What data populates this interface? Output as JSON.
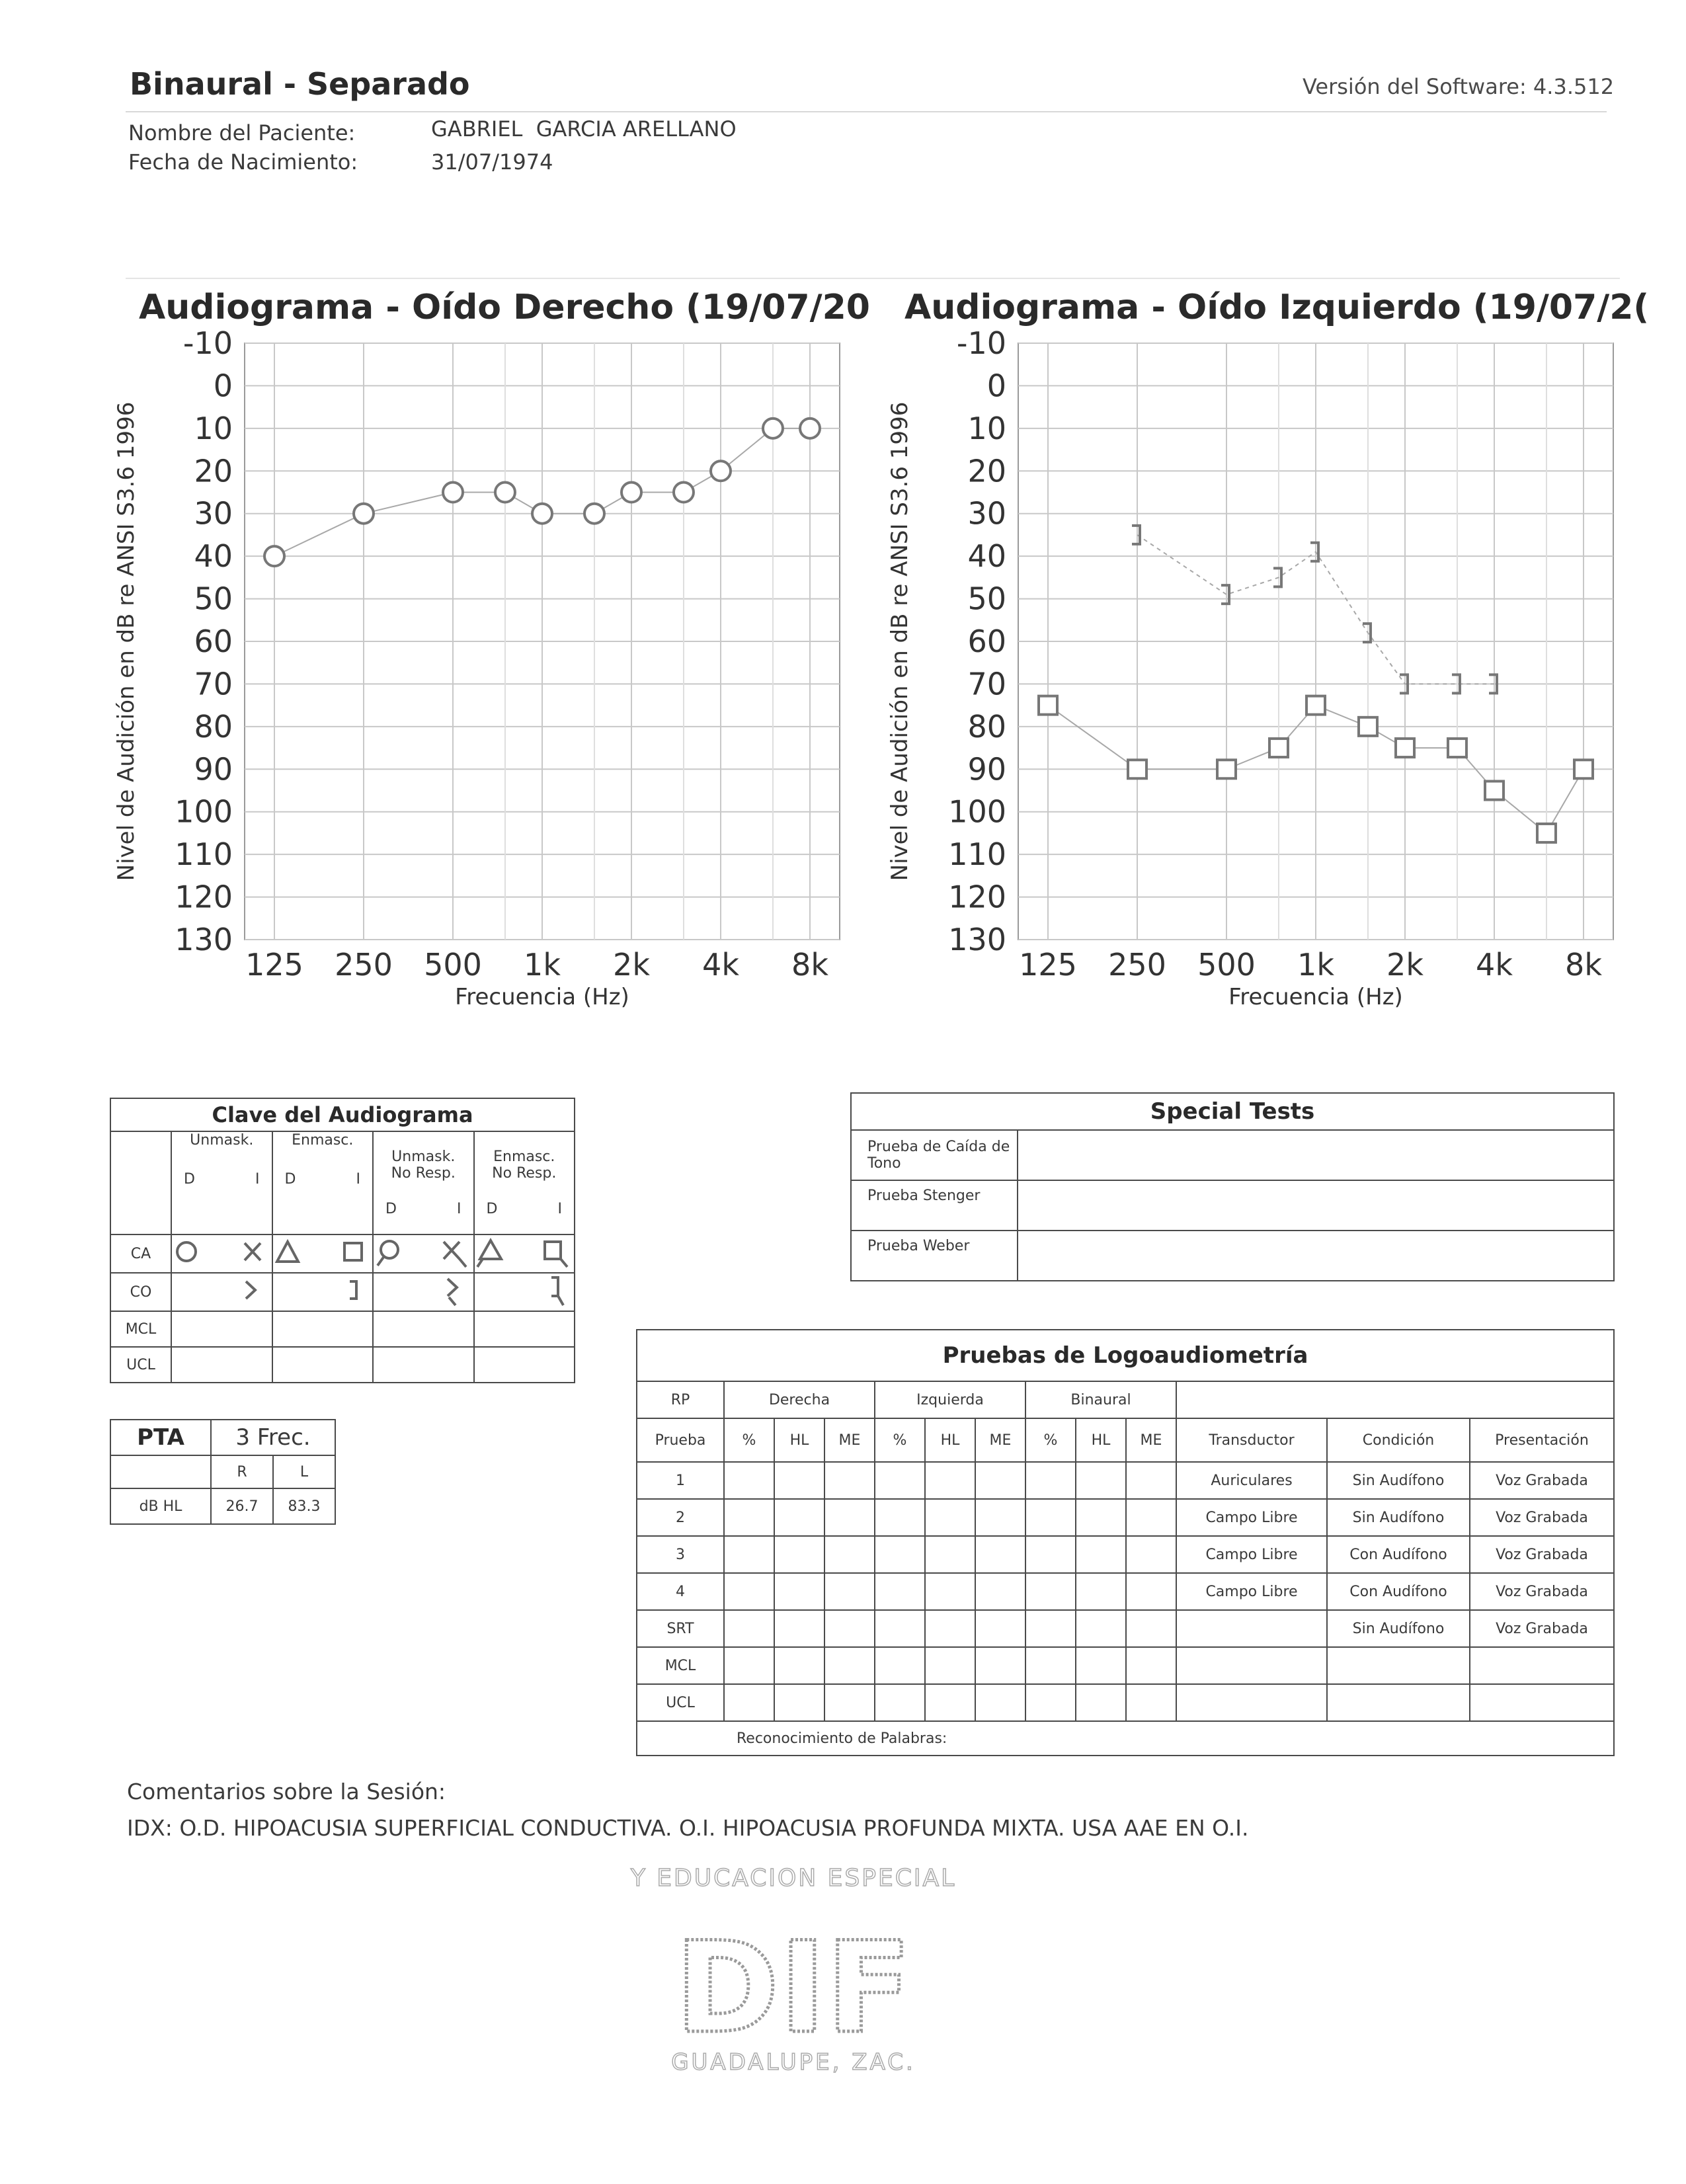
{
  "header": {
    "title": "Binaural - Separado",
    "software_version": "Versión del Software: 4.3.512",
    "patient_name_label": "Nombre del Paciente:",
    "patient_name": "GABRIEL  GARCIA ARELLANO",
    "birth_date_label": "Fecha de Nacimiento:",
    "birth_date": "31/07/1974"
  },
  "chart_data": [
    {
      "type": "line",
      "title": "Audiograma - Oído Derecho (19/07/20",
      "xlabel": "Frecuencia (Hz)",
      "ylabel": "Nivel de Audición en dB re ANSI S3.6 1996",
      "x_ticks": [
        "125",
        "250",
        "500",
        "1k",
        "2k",
        "4k",
        "8k"
      ],
      "y_ticks": [
        "-10",
        "0",
        "10",
        "20",
        "30",
        "40",
        "50",
        "60",
        "70",
        "80",
        "90",
        "100",
        "110",
        "120",
        "130"
      ],
      "ylim": [
        -10,
        130
      ],
      "y_inverted": true,
      "x_scale": "log",
      "grid": true,
      "series": [
        {
          "marker": "circle",
          "connected": true,
          "x": [
            125,
            250,
            500,
            750,
            1000,
            1500,
            2000,
            3000,
            4000,
            6000,
            8000
          ],
          "y": [
            40,
            30,
            25,
            25,
            30,
            30,
            25,
            25,
            20,
            10,
            10
          ]
        }
      ]
    },
    {
      "type": "line",
      "title": "Audiograma - Oído Izquierdo (19/07/2(",
      "xlabel": "Frecuencia (Hz)",
      "ylabel": "Nivel de Audición en dB re ANSI S3.6 1996",
      "x_ticks": [
        "125",
        "250",
        "500",
        "1k",
        "2k",
        "4k",
        "8k"
      ],
      "y_ticks": [
        "-10",
        "0",
        "10",
        "20",
        "30",
        "40",
        "50",
        "60",
        "70",
        "80",
        "90",
        "100",
        "110",
        "120",
        "130"
      ],
      "ylim": [
        -10,
        130
      ],
      "y_inverted": true,
      "x_scale": "log",
      "grid": true,
      "series": [
        {
          "marker": "square",
          "connected": true,
          "x": [
            125,
            250,
            500,
            750,
            1000,
            1500,
            2000,
            3000,
            4000,
            6000,
            8000
          ],
          "y": [
            75,
            90,
            90,
            85,
            75,
            80,
            85,
            85,
            95,
            105,
            90
          ]
        },
        {
          "marker": "bracket-right",
          "connected": true,
          "x": [
            250,
            500,
            750,
            1000,
            1500,
            2000,
            3000,
            4000
          ],
          "y": [
            35,
            49,
            45,
            39,
            58,
            70,
            70,
            70
          ]
        }
      ]
    }
  ],
  "audiogram_key": {
    "title": "Clave del Audiograma",
    "columns": [
      "Unmask.",
      "Enmasc.",
      "Unmask.\nNo Resp.",
      "Enmasc.\nNo Resp."
    ],
    "sides": [
      "D",
      "I"
    ],
    "rows": [
      "CA",
      "CO",
      "MCL",
      "UCL"
    ]
  },
  "pta": {
    "title": "PTA",
    "freq_label": "3 Frec.",
    "r_label": "R",
    "l_label": "L",
    "row_label": "dB HL",
    "r_value": "26.7",
    "l_value": "83.3"
  },
  "special_tests": {
    "title": "Special Tests",
    "rows": [
      "Prueba de Caída de Tono",
      "Prueba Stenger",
      "Prueba Weber"
    ]
  },
  "speech": {
    "title": "Pruebas de Logoaudiometría",
    "rp_label": "RP",
    "group_labels": [
      "Derecha",
      "Izquierda",
      "Binaural"
    ],
    "prueba_label": "Prueba",
    "sub_labels": [
      "%",
      "HL",
      "ME"
    ],
    "extra_headers": [
      "Transductor",
      "Condición",
      "Presentación"
    ],
    "rows": [
      {
        "label": "1",
        "transductor": "Auriculares",
        "condicion": "Sin Audífono",
        "presentacion": "Voz Grabada"
      },
      {
        "label": "2",
        "transductor": "Campo Libre",
        "condicion": "Sin Audífono",
        "presentacion": "Voz Grabada"
      },
      {
        "label": "3",
        "transductor": "Campo Libre",
        "condicion": "Con Audífono",
        "presentacion": "Voz Grabada"
      },
      {
        "label": "4",
        "transductor": "Campo Libre",
        "condicion": "Con Audífono",
        "presentacion": "Voz Grabada"
      },
      {
        "label": "SRT",
        "transductor": "",
        "condicion": "Sin Audífono",
        "presentacion": "Voz Grabada"
      },
      {
        "label": "MCL",
        "transductor": "",
        "condicion": "",
        "presentacion": ""
      },
      {
        "label": "UCL",
        "transductor": "",
        "condicion": "",
        "presentacion": ""
      }
    ],
    "footer": "Reconocimiento de Palabras:"
  },
  "comments": {
    "label": "Comentarios sobre la Sesión:",
    "text": "IDX: O.D. HIPOACUSIA SUPERFICIAL CONDUCTIVA. O.I. HIPOACUSIA PROFUNDA MIXTA. USA AAE EN O.I."
  },
  "stamp": {
    "line1": "Y EDUCACION ESPECIAL",
    "logo": "DIF",
    "line2": "GUADALUPE, ZAC."
  },
  "colors": {
    "grid": "#c8c8c8",
    "marker": "#777777",
    "ink": "#3a3a3a"
  }
}
